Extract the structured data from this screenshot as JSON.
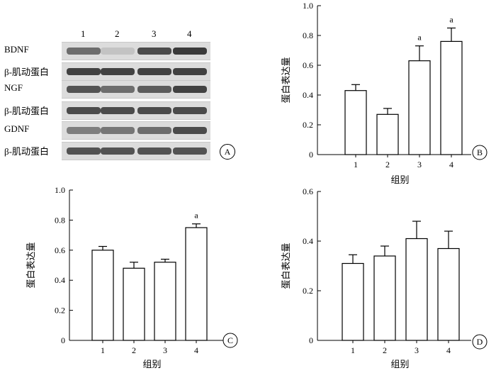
{
  "western_blot": {
    "lanes": [
      "1",
      "2",
      "3",
      "4"
    ],
    "rows": [
      {
        "label": "BDNF",
        "intensity": [
          0.65,
          0.15,
          0.85,
          0.95
        ]
      },
      {
        "label": "β-肌动蛋白",
        "intensity": [
          0.9,
          0.9,
          0.9,
          0.9
        ]
      },
      {
        "label": "NGF",
        "intensity": [
          0.8,
          0.65,
          0.75,
          0.9
        ]
      },
      {
        "label": "β-肌动蛋白",
        "intensity": [
          0.85,
          0.85,
          0.85,
          0.85
        ]
      },
      {
        "label": "GDNF",
        "intensity": [
          0.55,
          0.6,
          0.65,
          0.85
        ]
      },
      {
        "label": "β-肌动蛋白",
        "intensity": [
          0.8,
          0.8,
          0.8,
          0.8
        ]
      }
    ],
    "panel": "A"
  },
  "chart_data": [
    {
      "panel": "B",
      "type": "bar",
      "categories": [
        "1",
        "2",
        "3",
        "4"
      ],
      "values": [
        0.43,
        0.27,
        0.63,
        0.76
      ],
      "errors": [
        0.04,
        0.04,
        0.1,
        0.09
      ],
      "annotations": [
        "",
        "",
        "a",
        "a"
      ],
      "ylabel": "蛋白表达量",
      "xlabel": "组别",
      "ylim": [
        0,
        1.0
      ],
      "yticks": [
        "0",
        "0.2",
        "0.4",
        "0.6",
        "0.8",
        "1.0"
      ]
    },
    {
      "panel": "C",
      "type": "bar",
      "categories": [
        "1",
        "2",
        "3",
        "4"
      ],
      "values": [
        0.6,
        0.48,
        0.52,
        0.75
      ],
      "errors": [
        0.025,
        0.04,
        0.02,
        0.025
      ],
      "annotations": [
        "",
        "",
        "",
        "a"
      ],
      "ylabel": "蛋白表达量",
      "xlabel": "组别",
      "ylim": [
        0,
        1.0
      ],
      "yticks": [
        "0",
        "0.2",
        "0.4",
        "0.6",
        "0.8",
        "1.0"
      ]
    },
    {
      "panel": "D",
      "type": "bar",
      "categories": [
        "1",
        "2",
        "3",
        "4"
      ],
      "values": [
        0.31,
        0.34,
        0.41,
        0.37
      ],
      "errors": [
        0.035,
        0.04,
        0.07,
        0.07
      ],
      "annotations": [
        "",
        "",
        "",
        ""
      ],
      "ylabel": "蛋白表达量",
      "xlabel": "组别",
      "ylim": [
        0,
        0.6
      ],
      "yticks": [
        "0",
        "0.2",
        "0.4",
        "0.6"
      ]
    }
  ]
}
